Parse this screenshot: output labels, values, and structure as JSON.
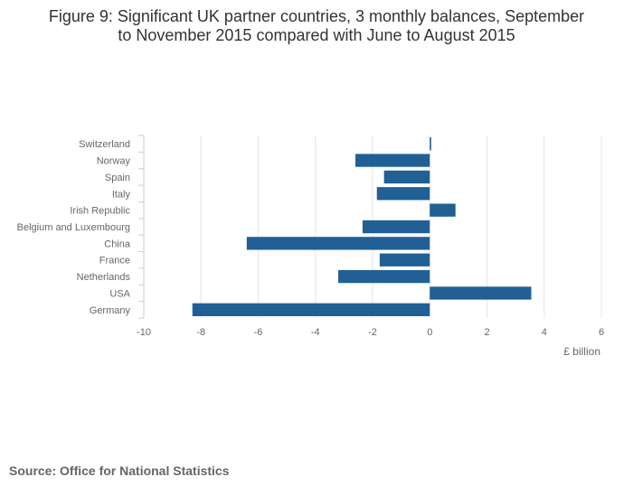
{
  "title_line1": "Figure 9: Significant UK partner countries, 3 monthly balances, September",
  "title_line2": "to November 2015 compared with June to August 2015",
  "source": "Source: Office for National Statistics",
  "chart_data": {
    "type": "bar",
    "orientation": "horizontal",
    "categories": [
      "Switzerland",
      "Norway",
      "Spain",
      "Italy",
      "Irish Republic",
      "Belgium and Luxembourg",
      "China",
      "France",
      "Netherlands",
      "USA",
      "Germany"
    ],
    "values": [
      0.05,
      -2.6,
      -1.6,
      -1.85,
      0.9,
      -2.35,
      -6.4,
      -1.75,
      -3.2,
      3.55,
      -8.3
    ],
    "xlabel": "£ billion",
    "ylabel": "",
    "xlim": [
      -10,
      6
    ],
    "xticks": [
      -10,
      -8,
      -6,
      -4,
      -2,
      0,
      2,
      4,
      6
    ],
    "grid": true,
    "bar_color": "#206095"
  }
}
